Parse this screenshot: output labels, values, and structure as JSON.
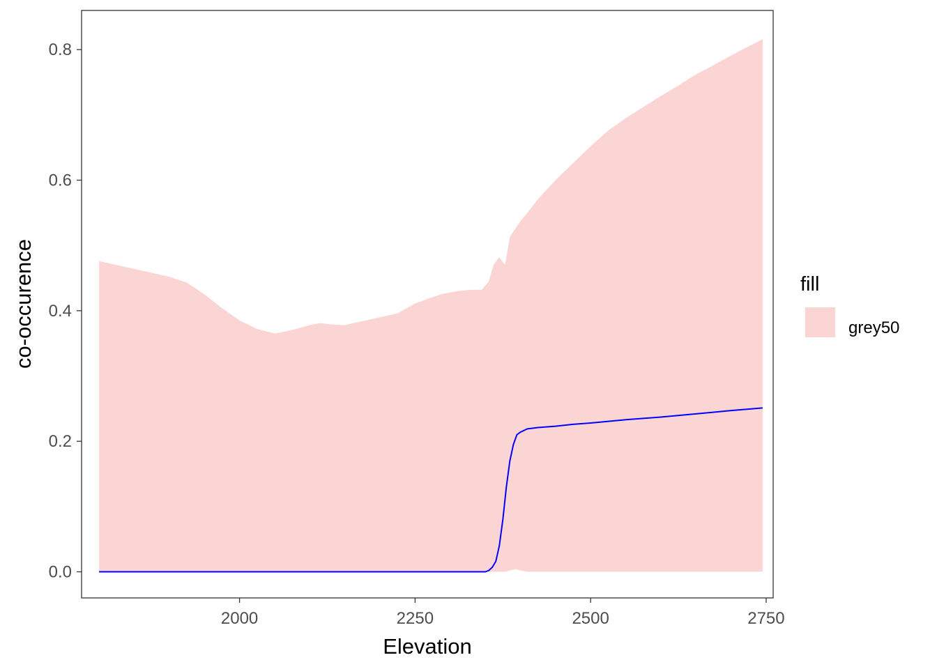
{
  "chart_data": {
    "type": "area",
    "xlabel": "Elevation",
    "ylabel": "co-occurence",
    "xlim": [
      1775,
      2760
    ],
    "ylim": [
      -0.04,
      0.86
    ],
    "x_ticks": [
      {
        "value": 2000,
        "label": "2000"
      },
      {
        "value": 2250,
        "label": "2250"
      },
      {
        "value": 2500,
        "label": "2500"
      },
      {
        "value": 2750,
        "label": "2750"
      }
    ],
    "y_ticks": [
      {
        "value": 0.0,
        "label": "0.0"
      },
      {
        "value": 0.2,
        "label": "0.2"
      },
      {
        "value": 0.4,
        "label": "0.4"
      },
      {
        "value": 0.6,
        "label": "0.6"
      },
      {
        "value": 0.8,
        "label": "0.8"
      }
    ],
    "grid": false,
    "legend": {
      "title": "fill",
      "position": "right",
      "entries": [
        {
          "label": "grey50",
          "color": "#fbd5d3"
        }
      ]
    },
    "ribbon": {
      "color": "#fbd5d3",
      "x": [
        1800,
        1850,
        1900,
        1925,
        1950,
        1975,
        2000,
        2025,
        2050,
        2060,
        2080,
        2100,
        2115,
        2130,
        2150,
        2175,
        2200,
        2225,
        2250,
        2275,
        2290,
        2310,
        2330,
        2345,
        2355,
        2362,
        2370,
        2378,
        2385,
        2393,
        2400,
        2410,
        2425,
        2450,
        2475,
        2500,
        2525,
        2550,
        2575,
        2600,
        2625,
        2650,
        2675,
        2700,
        2725,
        2745
      ],
      "upper": [
        0.476,
        0.464,
        0.452,
        0.443,
        0.425,
        0.404,
        0.385,
        0.372,
        0.365,
        0.367,
        0.372,
        0.378,
        0.381,
        0.379,
        0.378,
        0.384,
        0.39,
        0.396,
        0.411,
        0.421,
        0.426,
        0.43,
        0.432,
        0.432,
        0.445,
        0.471,
        0.482,
        0.47,
        0.513,
        0.526,
        0.537,
        0.55,
        0.571,
        0.6,
        0.626,
        0.652,
        0.676,
        0.695,
        0.712,
        0.729,
        0.745,
        0.762,
        0.776,
        0.791,
        0.805,
        0.816
      ],
      "lower": [
        0.0,
        0.0,
        0.0,
        0.0,
        0.0,
        0.0,
        0.0,
        0.0,
        0.0,
        0.0,
        0.0,
        0.0,
        0.0,
        0.0,
        0.0,
        0.0,
        0.0,
        0.0,
        0.0,
        0.0,
        0.0,
        0.0,
        0.0,
        0.0,
        0.0,
        0.0,
        0.0,
        0.0,
        0.002,
        0.004,
        0.002,
        0.0,
        0.0,
        0.0,
        0.0,
        0.0,
        0.0,
        0.0,
        0.0,
        0.0,
        0.0,
        0.0,
        0.0,
        0.0,
        0.0,
        0.0
      ]
    },
    "series": [
      {
        "color": "#0000ff",
        "x": [
          1800,
          1900,
          2000,
          2100,
          2200,
          2300,
          2350,
          2355,
          2360,
          2365,
          2370,
          2375,
          2380,
          2385,
          2390,
          2395,
          2400,
          2410,
          2425,
          2450,
          2475,
          2500,
          2550,
          2600,
          2650,
          2700,
          2745
        ],
        "y": [
          0.0,
          0.0,
          0.0,
          0.0,
          0.0,
          0.0,
          0.0,
          0.002,
          0.007,
          0.016,
          0.04,
          0.08,
          0.13,
          0.17,
          0.195,
          0.21,
          0.214,
          0.219,
          0.221,
          0.223,
          0.226,
          0.228,
          0.233,
          0.237,
          0.242,
          0.247,
          0.251
        ]
      }
    ]
  }
}
